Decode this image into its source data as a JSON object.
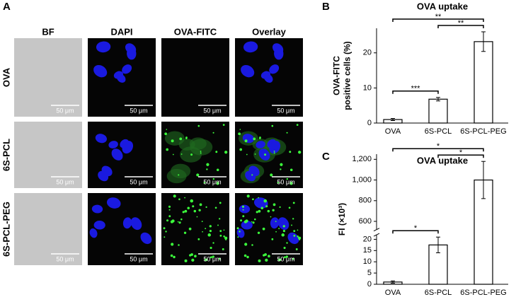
{
  "panel_a": {
    "label": "A",
    "columns": [
      "BF",
      "DAPI",
      "OVA-FITC",
      "Overlay"
    ],
    "rows": [
      "OVA",
      "6S-PCL",
      "6S-PCL-PEG"
    ],
    "scale_bars": [
      [
        "50 μm",
        "50 μm",
        "50 μm",
        "50 μm"
      ],
      [
        "50 μm",
        "50 μm",
        "50 μm",
        "50 μm"
      ],
      [
        "50 μm",
        "50 μm",
        "50 μm",
        "50 μm"
      ]
    ]
  },
  "chart_data": [
    {
      "type": "bar",
      "panel_label": "B",
      "title": "OVA uptake",
      "y_label": [
        "OVA-FITC",
        "positive cells (%)"
      ],
      "categories": [
        "OVA",
        "6S-PCL",
        "6S-PCL-PEG"
      ],
      "values": [
        1,
        6.8,
        23.2
      ],
      "errors": [
        0.3,
        0.5,
        2.8
      ],
      "color": "#ffffff",
      "ylim": [
        0,
        27
      ],
      "yticks": [
        0,
        10,
        20
      ],
      "significance": [
        {
          "between": [
            "OVA",
            "6S-PCL"
          ],
          "label": "***"
        },
        {
          "between": [
            "6S-PCL",
            "6S-PCL-PEG"
          ],
          "label": "**"
        },
        {
          "between": [
            "OVA",
            "6S-PCL-PEG"
          ],
          "label": "**"
        }
      ]
    },
    {
      "type": "bar",
      "panel_label": "C",
      "title": "OVA uptake",
      "y_label": [
        "FI (×10³)"
      ],
      "categories": [
        "OVA",
        "6S-PCL",
        "6S-PCL-PEG"
      ],
      "values": [
        1,
        17.5,
        1000
      ],
      "errors": [
        0.5,
        3.5,
        180
      ],
      "color": "#ffffff",
      "ylim": [
        0,
        1250
      ],
      "axis_break": [
        22,
        520
      ],
      "yticks": [
        0,
        5,
        10,
        15,
        20,
        600,
        800,
        {
          "value": 1000,
          "label": "1,000"
        },
        {
          "value": 1200,
          "label": "1,200"
        }
      ],
      "significance": [
        {
          "between": [
            "OVA",
            "6S-PCL"
          ],
          "label": "*"
        },
        {
          "between": [
            "6S-PCL",
            "6S-PCL-PEG"
          ],
          "label": "*"
        },
        {
          "between": [
            "OVA",
            "6S-PCL-PEG"
          ],
          "label": "*"
        }
      ]
    }
  ]
}
